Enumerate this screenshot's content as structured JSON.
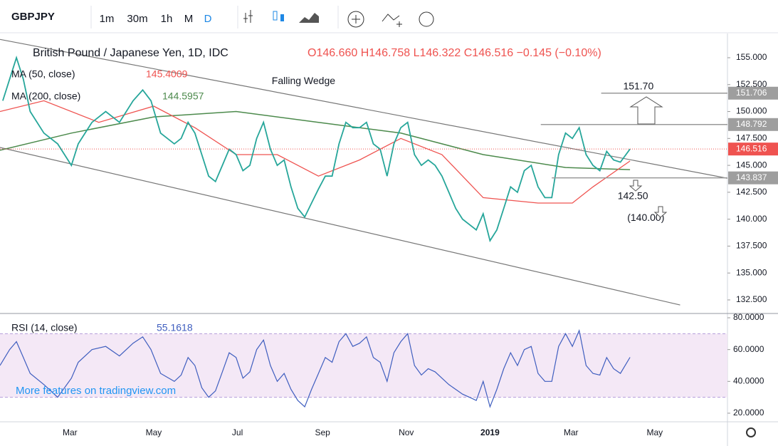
{
  "toolbar": {
    "symbol": "GBPJPY",
    "intervals": [
      "1m",
      "30m",
      "1h",
      "M",
      "D"
    ]
  },
  "chart_data": [
    {
      "type": "line",
      "title": "British Pound / Japanese Yen, 1D, IDC",
      "ohlc": "O146.660 H146.758 L146.322 C146.516 −0.145 (−0.10%)",
      "xlim": [
        8,
        538
      ],
      "xticks": [
        {
          "value": 59,
          "label": "Mar"
        },
        {
          "value": 120,
          "label": "May"
        },
        {
          "value": 181,
          "label": "Jul"
        },
        {
          "value": 243,
          "label": "Sep"
        },
        {
          "value": 304,
          "label": "Nov"
        },
        {
          "value": 365,
          "label": "2019"
        },
        {
          "value": 424,
          "label": "Mar"
        },
        {
          "value": 485,
          "label": "May"
        }
      ],
      "ylim": [
        131.24,
        157.25
      ],
      "yticks": [
        {
          "value": 155,
          "label": "155.000"
        },
        {
          "value": 152.5,
          "label": "152.500"
        },
        {
          "value": 150,
          "label": "150.000"
        },
        {
          "value": 147.5,
          "label": "147.500"
        },
        {
          "value": 145,
          "label": "145.000"
        },
        {
          "value": 142.5,
          "label": "142.500"
        },
        {
          "value": 140,
          "label": "140.000"
        },
        {
          "value": 137.5,
          "label": "137.500"
        },
        {
          "value": 135,
          "label": "135.000"
        },
        {
          "value": 132.5,
          "label": "132.500"
        }
      ],
      "series": [
        {
          "name": "GBPJPY",
          "color": "#26a69a",
          "x": [
            10,
            15,
            20,
            25,
            30,
            40,
            50,
            60,
            65,
            75,
            85,
            95,
            105,
            112,
            118,
            125,
            135,
            140,
            145,
            150,
            155,
            160,
            165,
            170,
            175,
            180,
            185,
            190,
            195,
            200,
            205,
            210,
            215,
            220,
            225,
            230,
            235,
            240,
            245,
            250,
            255,
            260,
            265,
            270,
            275,
            280,
            285,
            290,
            295,
            300,
            305,
            310,
            315,
            320,
            325,
            330,
            335,
            340,
            345,
            350,
            355,
            360,
            365,
            370,
            375,
            380,
            385,
            390,
            395,
            400,
            405,
            410,
            415,
            420,
            425,
            430,
            435,
            440,
            445,
            450,
            455,
            460,
            467
          ],
          "values": [
            151,
            153,
            155,
            153,
            150,
            148,
            147,
            145,
            147,
            149,
            150,
            149,
            151,
            152,
            151,
            148,
            147,
            147.5,
            149,
            148,
            146,
            144,
            143.5,
            145,
            146.5,
            146,
            144.5,
            145,
            147.5,
            149,
            146.5,
            145,
            145.5,
            143,
            141,
            140.2,
            141.5,
            142.8,
            144,
            144,
            147,
            149,
            148.5,
            148.5,
            149,
            147,
            146.5,
            144,
            147,
            148.5,
            149,
            146,
            145,
            145.5,
            145,
            144,
            142.5,
            141,
            140,
            139.5,
            139,
            140.5,
            138,
            139,
            141,
            143,
            142.5,
            144.5,
            145,
            143,
            142,
            142,
            146,
            148,
            147.5,
            148.5,
            146,
            145,
            144.5,
            146.3,
            145.5,
            145.3,
            146.516
          ]
        },
        {
          "name": "MA (50, close)",
          "label": "145.4009",
          "color": "#ef5350",
          "x": [
            8,
            40,
            80,
            120,
            150,
            180,
            210,
            240,
            270,
            300,
            330,
            360,
            400,
            425,
            440,
            467
          ],
          "values": [
            150,
            151,
            149,
            150.5,
            148.5,
            146,
            146,
            144,
            145.5,
            147.5,
            146,
            142,
            141.5,
            141.5,
            143,
            145.4
          ]
        },
        {
          "name": "MA (200, close)",
          "label": "144.5957",
          "color": "#4c8a4c",
          "x": [
            8,
            60,
            120,
            180,
            240,
            300,
            360,
            420,
            467
          ],
          "values": [
            146.4,
            148,
            149.5,
            150,
            149,
            148,
            146,
            144.8,
            144.6
          ]
        }
      ],
      "last_price": {
        "value": 146.516,
        "label": "146.516"
      },
      "levels": [
        {
          "value": 151.706,
          "label": "151.706",
          "from": 446
        },
        {
          "value": 148.792,
          "label": "148.792",
          "from": 402
        },
        {
          "value": 143.837,
          "label": "143.837",
          "from": 410
        }
      ],
      "trendlines": [
        {
          "x": [
            8,
            538
          ],
          "values": [
            156.7,
            143.8
          ]
        },
        {
          "x": [
            8,
            503.5
          ],
          "values": [
            146.66,
            132.03
          ]
        }
      ],
      "annotations": [
        {
          "text": "Falling Wedge",
          "x": 206,
          "y": 152.8
        },
        {
          "text": "151.70",
          "x": 462,
          "y": 152.3
        },
        {
          "text": "142.50",
          "x": 458,
          "y": 142.1
        },
        {
          "text": "(140.00)",
          "x": 465,
          "y": 140.1
        }
      ]
    },
    {
      "type": "line",
      "title": "RSI (14, close)",
      "label": "55.1618",
      "ylim": [
        14.6,
        82.7
      ],
      "yticks": [
        {
          "value": 80,
          "label": "80.0000"
        },
        {
          "value": 60,
          "label": "60.0000"
        },
        {
          "value": 40,
          "label": "40.0000"
        },
        {
          "value": 20,
          "label": "20.0000"
        }
      ],
      "band": [
        30,
        70
      ],
      "note": "More features on tradingview.com",
      "series": [
        {
          "name": "RSI",
          "color": "#3f5ebf",
          "x": [
            8,
            15,
            20,
            25,
            30,
            40,
            50,
            60,
            65,
            75,
            85,
            95,
            105,
            112,
            118,
            125,
            135,
            140,
            145,
            150,
            155,
            160,
            165,
            170,
            175,
            180,
            185,
            190,
            195,
            200,
            205,
            210,
            215,
            220,
            225,
            230,
            235,
            240,
            245,
            250,
            255,
            260,
            265,
            270,
            275,
            280,
            285,
            290,
            295,
            300,
            305,
            310,
            315,
            320,
            325,
            330,
            335,
            340,
            345,
            350,
            355,
            360,
            365,
            370,
            375,
            380,
            385,
            390,
            395,
            400,
            405,
            410,
            415,
            420,
            425,
            430,
            435,
            440,
            445,
            450,
            455,
            460,
            467
          ],
          "values": [
            50,
            60,
            65,
            55,
            45,
            38,
            30,
            42,
            52,
            60,
            62,
            56,
            64,
            68,
            60,
            45,
            40,
            44,
            55,
            50,
            36,
            30,
            34,
            46,
            58,
            55,
            42,
            46,
            60,
            66,
            50,
            40,
            45,
            35,
            28,
            24,
            35,
            45,
            55,
            52,
            65,
            70,
            62,
            64,
            68,
            55,
            52,
            40,
            58,
            65,
            70,
            50,
            44,
            48,
            46,
            42,
            38,
            35,
            32,
            30,
            28,
            40,
            24,
            35,
            48,
            58,
            50,
            60,
            62,
            45,
            40,
            40,
            62,
            70,
            62,
            72,
            50,
            45,
            44,
            55,
            48,
            45,
            55.16
          ]
        }
      ]
    }
  ]
}
